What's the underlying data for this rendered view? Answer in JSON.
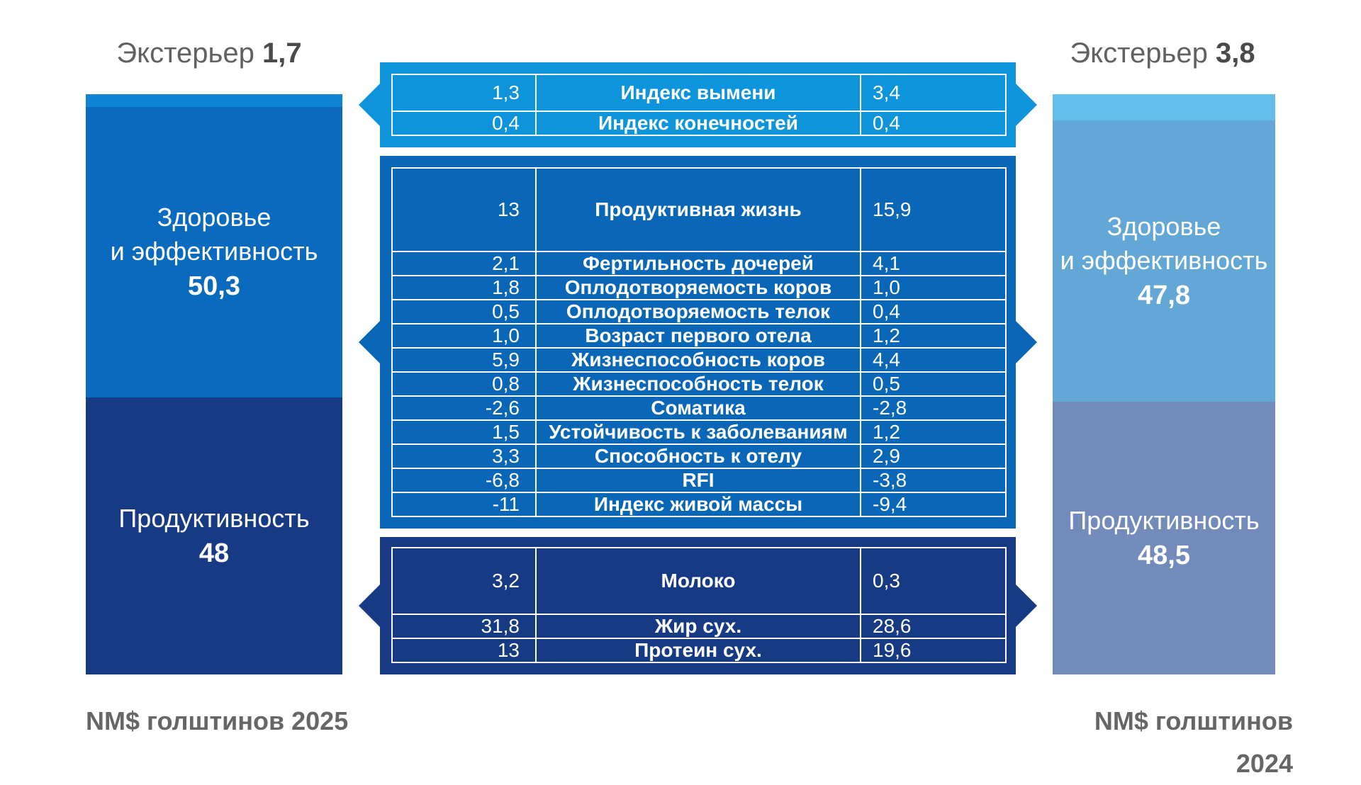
{
  "left_column": {
    "exterior_label": "Экстерьер",
    "exterior_value": "1,7",
    "health_label_line1": "Здоровье",
    "health_label_line2": "и эффективность",
    "health_value": "50,3",
    "productivity_label": "Продуктивность",
    "productivity_value": "48",
    "footer": "NM$ голштинов 2025",
    "colors": {
      "exterior": "#0D84D4",
      "health": "#0A6BBE",
      "productivity": "#173A85"
    }
  },
  "right_column": {
    "exterior_label": "Экстерьер",
    "exterior_value": "3,8",
    "health_label_line1": "Здоровье",
    "health_label_line2": "и эффективность",
    "health_value": "47,8",
    "productivity_label": "Продуктивность",
    "productivity_value": "48,5",
    "footer": "NM$ голштинов 2024",
    "colors": {
      "exterior": "#64BDEA",
      "health": "#63A7D6",
      "productivity": "#728BBA"
    }
  },
  "exterior_table": {
    "color": "#0D94DB",
    "rows": [
      {
        "left": "1,3",
        "name": "Индекс вымени",
        "right": "3,4"
      },
      {
        "left": "0,4",
        "name": "Индекс конечностей",
        "right": "0,4"
      }
    ]
  },
  "health_table": {
    "color": "#0A67B8",
    "rows": [
      {
        "left": "13",
        "name": "Продуктивная жизнь",
        "right": "15,9"
      },
      {
        "left": "2,1",
        "name": "Фертильность дочерей",
        "right": "4,1"
      },
      {
        "left": "1,8",
        "name": "Оплодотворяемость коров",
        "right": "1,0"
      },
      {
        "left": "0,5",
        "name": "Оплодотворяемость телок",
        "right": "0,4"
      },
      {
        "left": "1,0",
        "name": "Возраст первого отела",
        "right": "1,2"
      },
      {
        "left": "5,9",
        "name": "Жизнеспособность коров",
        "right": "4,4"
      },
      {
        "left": "0,8",
        "name": "Жизнеспособность телок",
        "right": "0,5"
      },
      {
        "left": "-2,6",
        "name": "Соматика",
        "right": "-2,8"
      },
      {
        "left": "1,5",
        "name": "Устойчивость к заболеваниям",
        "right": "1,2"
      },
      {
        "left": "3,3",
        "name": "Способность к отелу",
        "right": "2,9"
      },
      {
        "left": "-6,8",
        "name": "RFI",
        "right": "-3,8"
      },
      {
        "left": "-11",
        "name": "Индекс живой массы",
        "right": "-9,4"
      }
    ]
  },
  "productivity_table": {
    "color": "#173A85",
    "rows": [
      {
        "left": "3,2",
        "name": "Молоко",
        "right": "0,3"
      },
      {
        "left": "31,8",
        "name": "Жир сух.",
        "right": "28,6"
      },
      {
        "left": "13",
        "name": "Протеин сух.",
        "right": "19,6"
      }
    ]
  }
}
